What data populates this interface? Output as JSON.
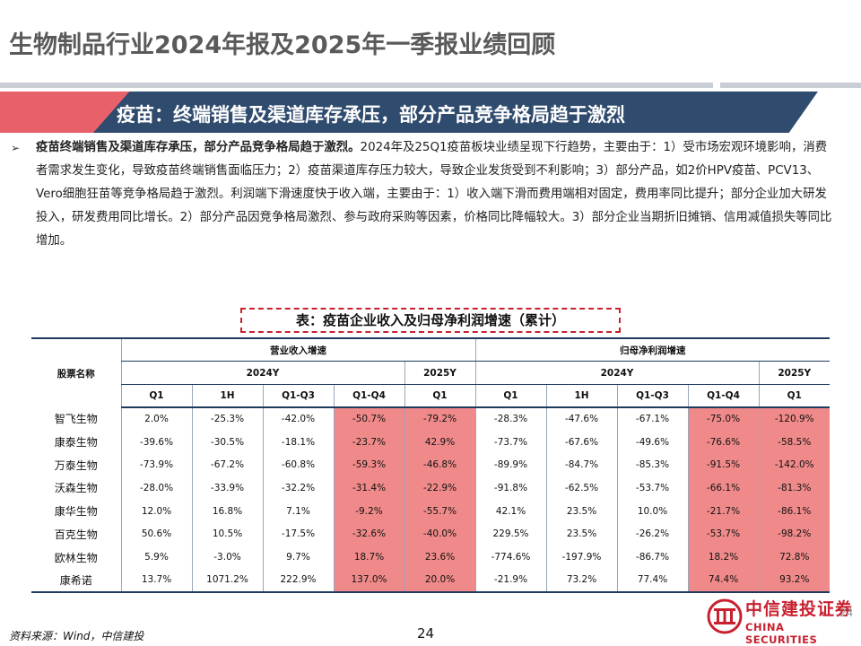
{
  "page_title": "生物制品行业2024年报及2025年一季报业绩回顾",
  "banner": {
    "text": "疫苗：终端销售及渠道库存承压，部分产品竞争格局趋于激烈"
  },
  "paragraph": {
    "bullet": "➢",
    "lead": "疫苗终端销售及渠道库存承压，部分产品竞争格局趋于激烈。",
    "body": "2024年及25Q1疫苗板块业绩呈现下行趋势，主要由于：1）受市场宏观环境影响，消费者需求发生变化，导致疫苗终端销售面临压力；2）疫苗渠道库存压力较大，导致企业发货受到不利影响；3）部分产品，如2价HPV疫苗、PCV13、Vero细胞狂苗等竞争格局趋于激烈。利润端下滑速度快于收入端，主要由于：1）收入端下滑而费用端相对固定，费用率同比提升；部分企业加大研发投入，研发费用同比增长。2）部分产品因竞争格局激烈、参与政府采购等因素，价格同比降幅较大。3）部分企业当期折旧摊销、信用减值损失等同比增加。"
  },
  "table": {
    "caption": "表：疫苗企业收入及归母净利润增速（累计）",
    "header": {
      "stock_name": "股票名称",
      "group_revenue": "营业收入增速",
      "group_profit": "归母净利润增速",
      "year_2024": "2024Y",
      "year_2025": "2025Y",
      "periods": [
        "Q1",
        "1H",
        "Q1-Q3",
        "Q1-Q4",
        "Q1"
      ]
    },
    "rows": [
      {
        "name": "智飞生物",
        "rev": [
          "2.0%",
          "-25.3%",
          "-42.0%",
          "-50.7%",
          "-79.2%"
        ],
        "np": [
          "-28.3%",
          "-47.6%",
          "-67.1%",
          "-75.0%",
          "-120.9%"
        ]
      },
      {
        "name": "康泰生物",
        "rev": [
          "-39.6%",
          "-30.5%",
          "-18.1%",
          "-23.7%",
          "42.9%"
        ],
        "np": [
          "-73.7%",
          "-67.6%",
          "-49.6%",
          "-76.6%",
          "-58.5%"
        ]
      },
      {
        "name": "万泰生物",
        "rev": [
          "-73.9%",
          "-67.2%",
          "-60.8%",
          "-59.3%",
          "-46.8%"
        ],
        "np": [
          "-89.9%",
          "-84.7%",
          "-85.3%",
          "-91.5%",
          "-142.0%"
        ]
      },
      {
        "name": "沃森生物",
        "rev": [
          "-28.0%",
          "-33.9%",
          "-32.2%",
          "-31.4%",
          "-22.9%"
        ],
        "np": [
          "-91.8%",
          "-62.5%",
          "-53.7%",
          "-66.1%",
          "-81.3%"
        ]
      },
      {
        "name": "康华生物",
        "rev": [
          "12.0%",
          "16.8%",
          "7.1%",
          "-9.2%",
          "-55.7%"
        ],
        "np": [
          "42.1%",
          "23.5%",
          "10.0%",
          "-21.7%",
          "-86.1%"
        ]
      },
      {
        "name": "百克生物",
        "rev": [
          "50.6%",
          "10.5%",
          "-17.5%",
          "-32.6%",
          "-40.0%"
        ],
        "np": [
          "229.5%",
          "23.5%",
          "-26.2%",
          "-53.7%",
          "-98.2%"
        ]
      },
      {
        "name": "欧林生物",
        "rev": [
          "5.9%",
          "-3.0%",
          "9.7%",
          "18.7%",
          "23.6%"
        ],
        "np": [
          "-774.6%",
          "-197.9%",
          "-86.7%",
          "18.2%",
          "72.8%"
        ]
      },
      {
        "name": "康希诺",
        "rev": [
          "13.7%",
          "1071.2%",
          "222.9%",
          "137.0%",
          "20.0%"
        ],
        "np": [
          "-21.9%",
          "73.2%",
          "77.4%",
          "74.4%",
          "93.2%"
        ]
      }
    ],
    "highlight_color": "#f08a8a"
  },
  "footer": {
    "source": "资料来源：Wind，中信建投",
    "page_number": "24"
  },
  "logo": {
    "name_cn": "中信建投证券",
    "name_en": "CHINA SECURITIES",
    "corner_page": "24"
  },
  "colors": {
    "banner_navy": "#2f4b6e",
    "banner_red": "#e8606a",
    "brand_red": "#c8202f"
  }
}
